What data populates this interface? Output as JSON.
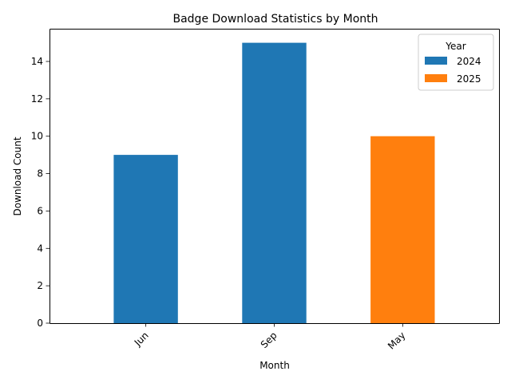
{
  "chart_data": {
    "type": "bar",
    "title": "Badge Download Statistics by Month",
    "xlabel": "Month",
    "ylabel": "Download Count",
    "categories": [
      "Jun",
      "Sep",
      "May"
    ],
    "series": [
      {
        "name": "2024",
        "color": "#1f77b4",
        "values": [
          9,
          15,
          null
        ]
      },
      {
        "name": "2025",
        "color": "#ff7f0e",
        "values": [
          null,
          null,
          10
        ]
      }
    ],
    "ylim": [
      0,
      15.75
    ],
    "yticks": [
      0,
      2,
      4,
      6,
      8,
      10,
      12,
      14
    ],
    "ytick_labels": [
      "0",
      "2",
      "4",
      "6",
      "8",
      "10",
      "12",
      "14"
    ],
    "xtick_rotation_deg": 45,
    "grid": false,
    "legend": {
      "title": "Year",
      "placement": "top-right"
    }
  }
}
